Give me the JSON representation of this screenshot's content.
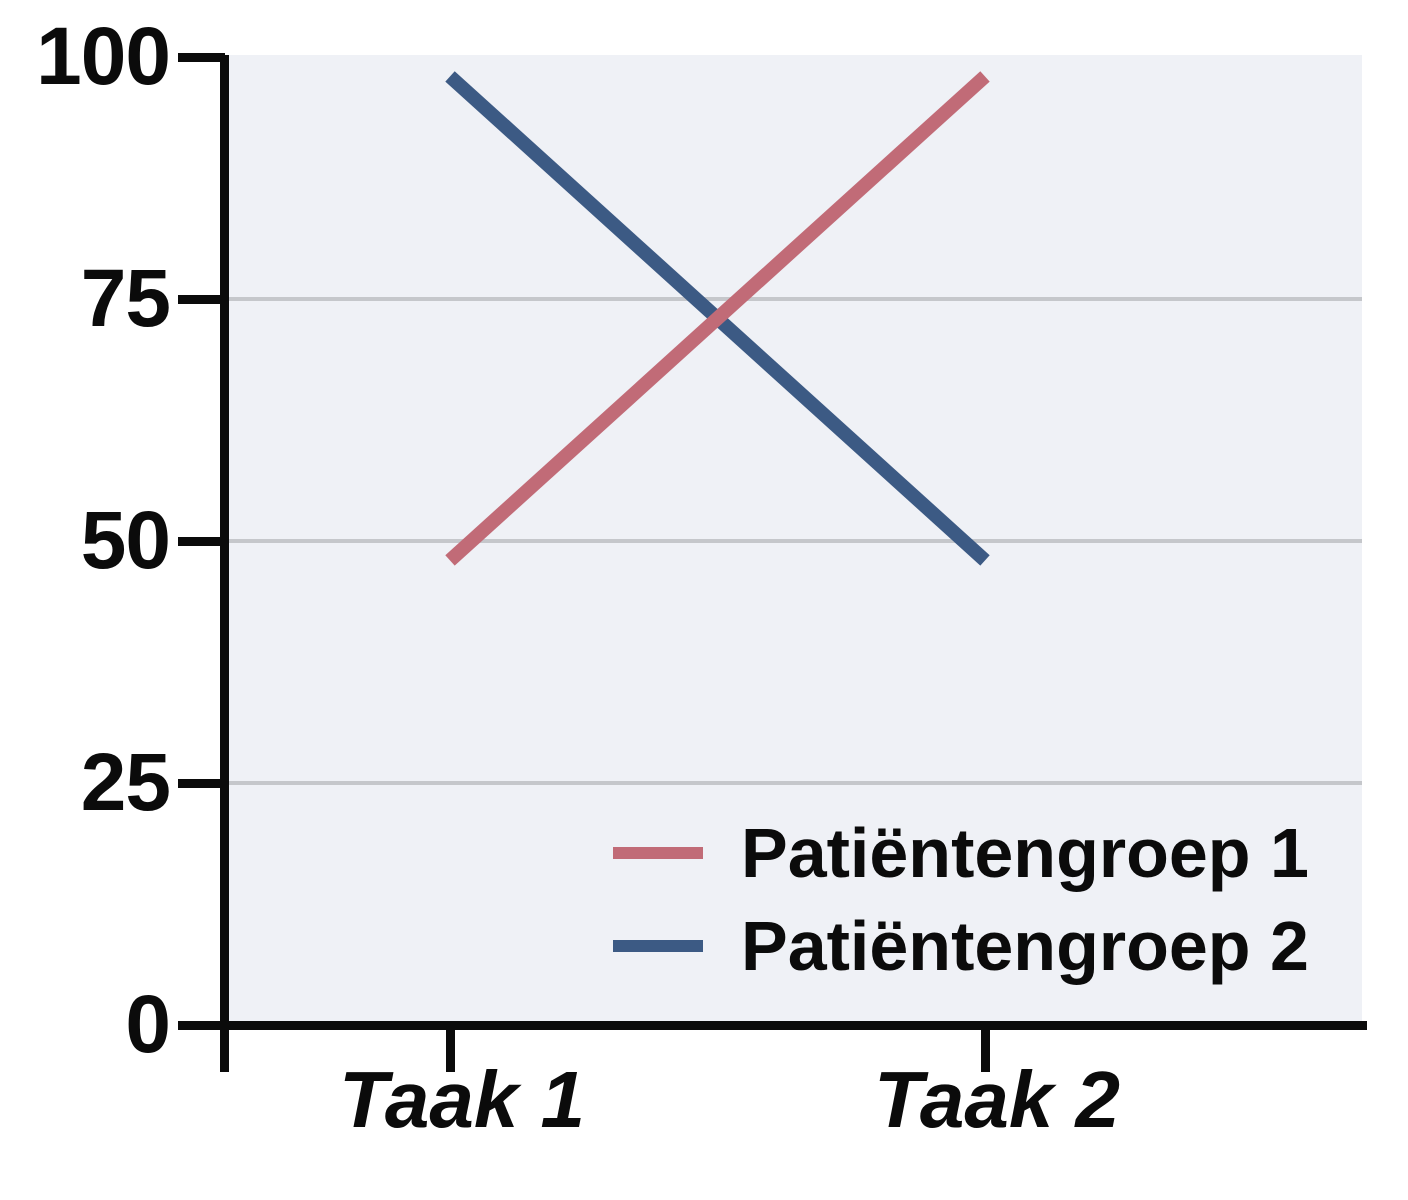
{
  "chart_data": {
    "type": "line",
    "categories": [
      "Taak 1",
      "Taak 2"
    ],
    "series": [
      {
        "name": "Patiëntengroep 1",
        "color": "#c16b77",
        "values": [
          48,
          98
        ]
      },
      {
        "name": "Patiëntengroep 2",
        "color": "#3c5a84",
        "values": [
          98,
          48
        ]
      }
    ],
    "title": "",
    "xlabel": "",
    "ylabel": "",
    "ylim": [
      0,
      100
    ],
    "yticks": [
      0,
      25,
      50,
      75,
      100
    ],
    "ytick_labels": [
      "0",
      "25",
      "50",
      "75",
      "100"
    ],
    "grid": "horizontal",
    "grid_color": "#c5c7cb",
    "plot_background": "#eff1f6",
    "axis_color": "#0b0b0b",
    "legend_position": "inside-bottom-right",
    "legend_entries": [
      "Patiëntengroep 1",
      "Patiëntengroep 2"
    ]
  }
}
